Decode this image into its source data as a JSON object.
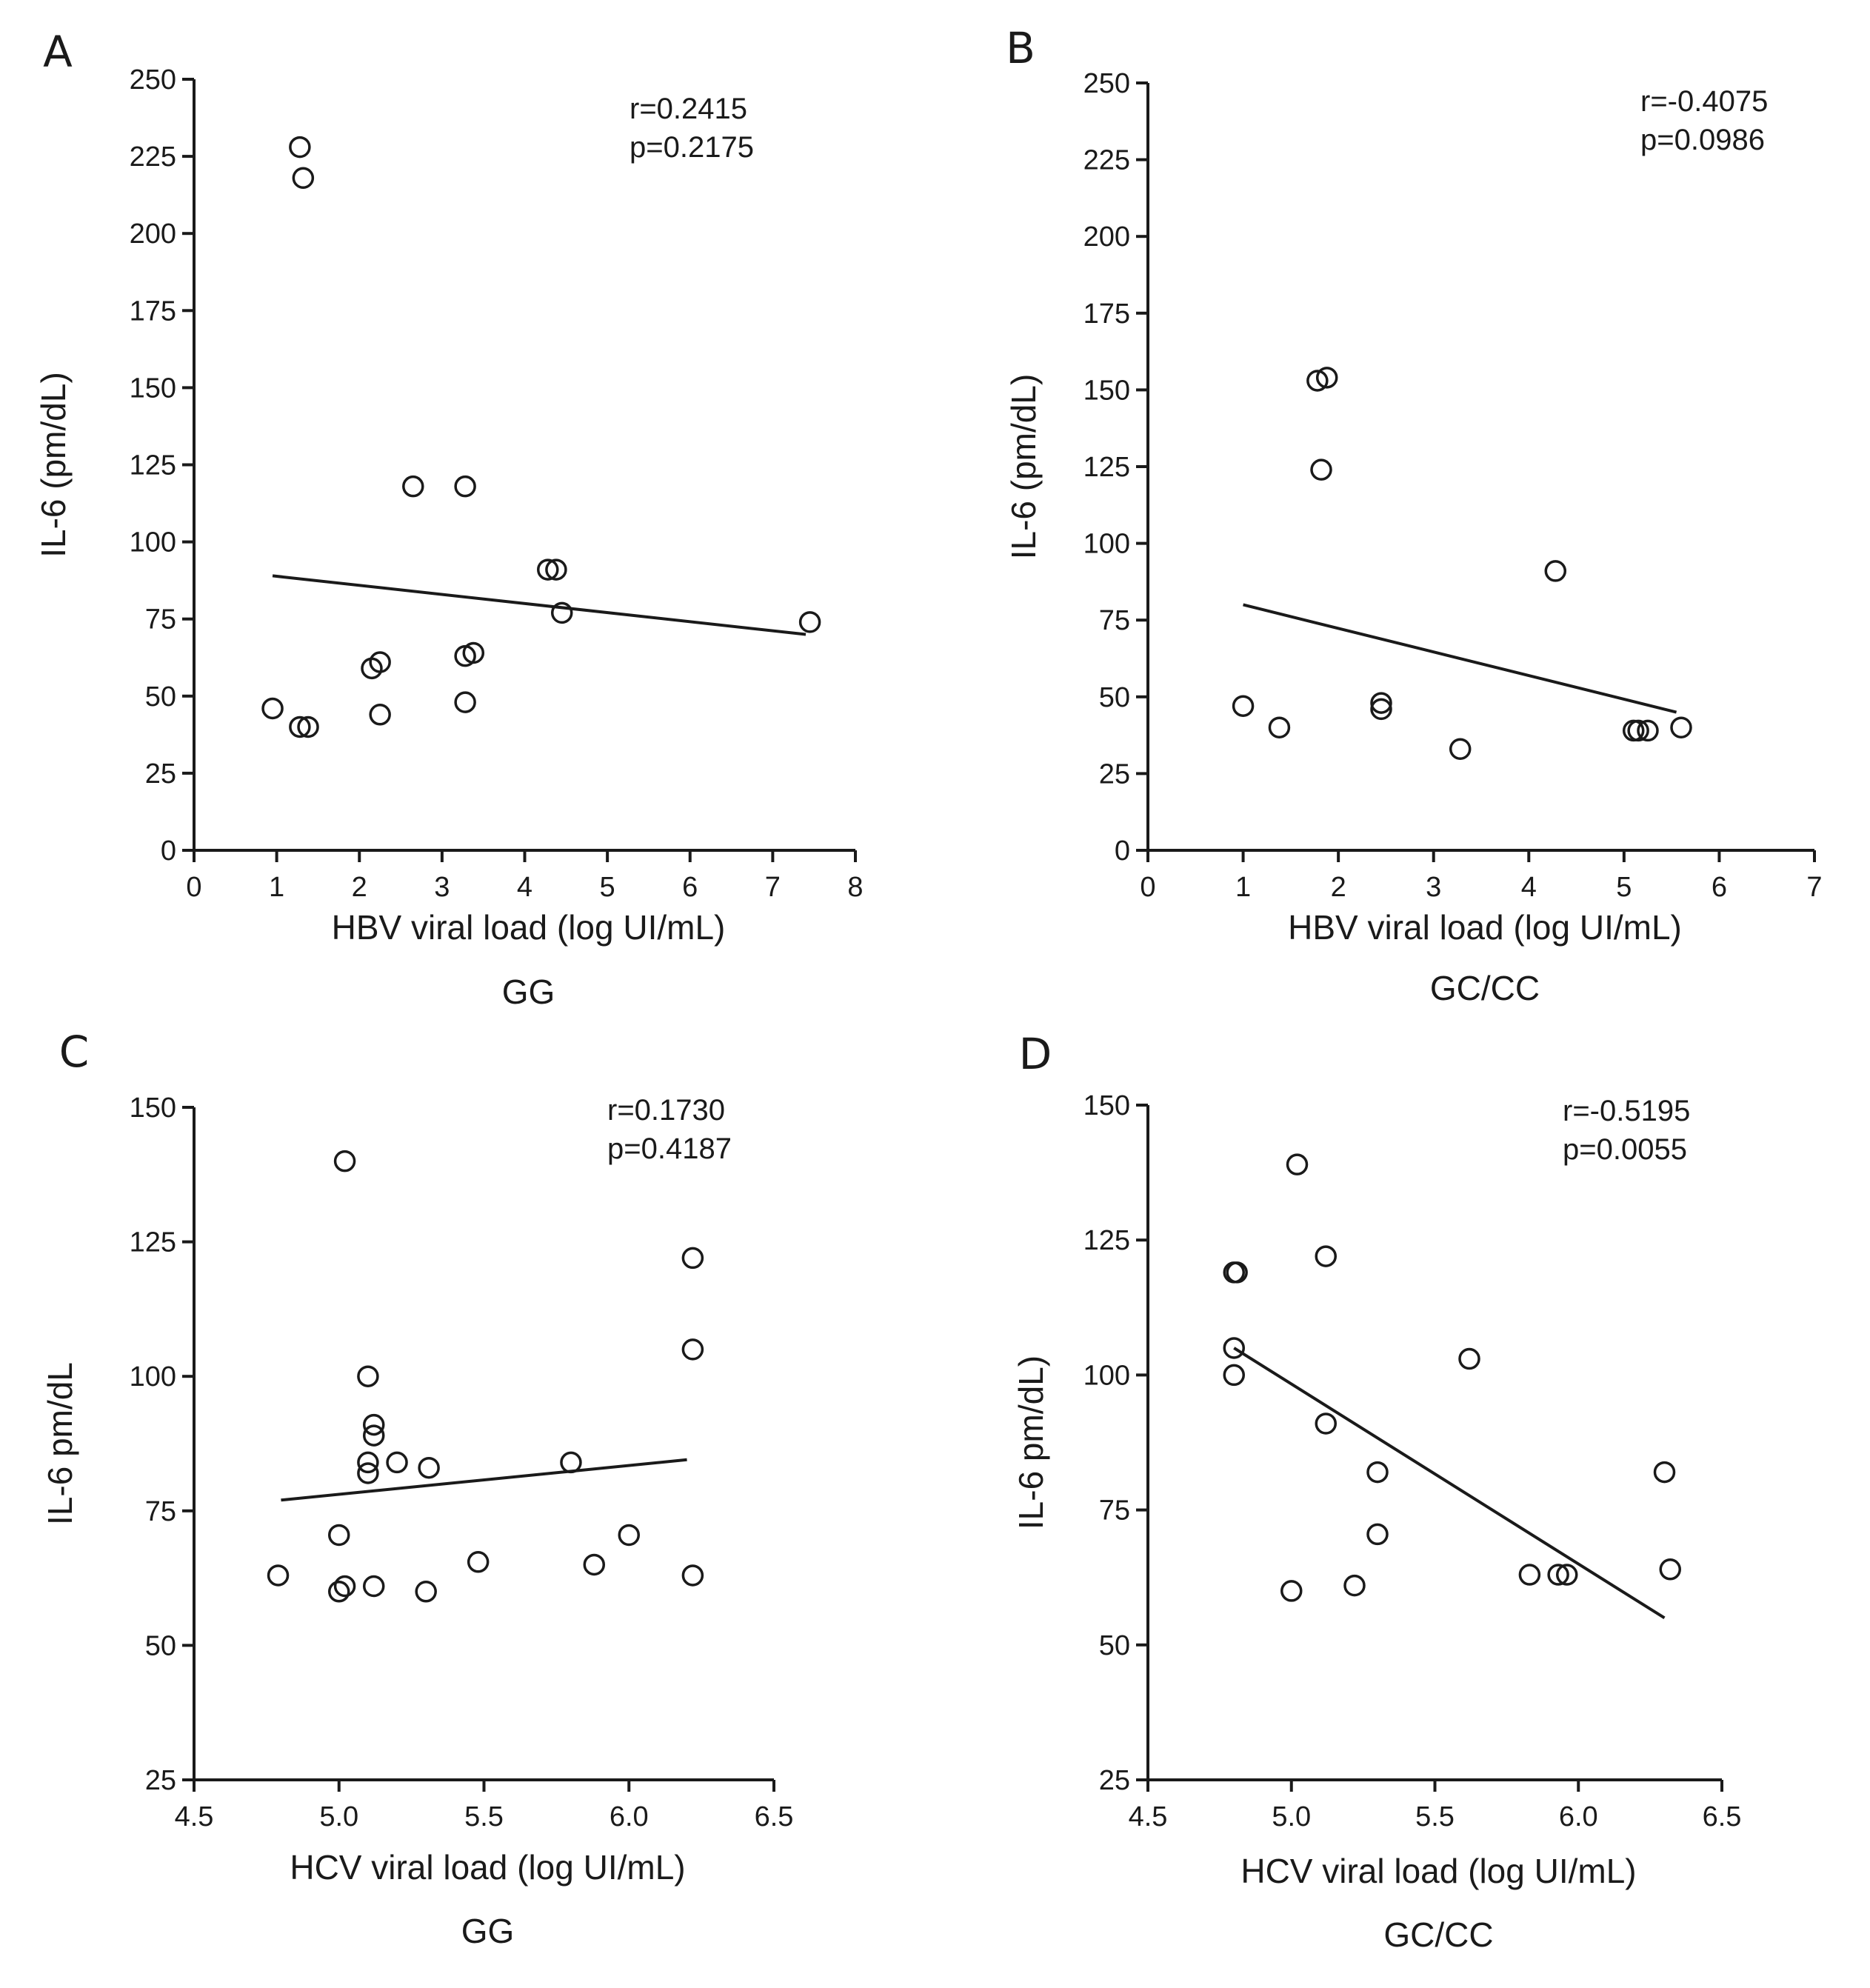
{
  "chart_data": [
    {
      "panel": "A",
      "type": "scatter",
      "title": "",
      "xlabel": "HBV viral load (log UI/mL)",
      "ylabel": "IL-6 (pm/dL)",
      "group": "GG",
      "xlim": [
        0,
        8
      ],
      "ylim": [
        0,
        250
      ],
      "xticks": [
        0,
        1,
        2,
        3,
        4,
        5,
        6,
        7,
        8
      ],
      "yticks": [
        0,
        25,
        50,
        75,
        100,
        125,
        150,
        175,
        200,
        225,
        250
      ],
      "xtick_labels": [
        "0",
        "1",
        "2",
        "3",
        "4",
        "5",
        "6",
        "7",
        "8"
      ],
      "ytick_labels": [
        "0",
        "25",
        "50",
        "75",
        "100",
        "125",
        "150",
        "175",
        "200",
        "225",
        "250"
      ],
      "stats": [
        "r=0.2415",
        "p=0.2175"
      ],
      "points": [
        {
          "x": 0.95,
          "y": 46
        },
        {
          "x": 1.28,
          "y": 40
        },
        {
          "x": 1.38,
          "y": 40
        },
        {
          "x": 1.28,
          "y": 228
        },
        {
          "x": 1.32,
          "y": 218
        },
        {
          "x": 2.15,
          "y": 59
        },
        {
          "x": 2.25,
          "y": 61
        },
        {
          "x": 2.25,
          "y": 44
        },
        {
          "x": 2.65,
          "y": 118
        },
        {
          "x": 3.28,
          "y": 118
        },
        {
          "x": 3.28,
          "y": 63
        },
        {
          "x": 3.38,
          "y": 64
        },
        {
          "x": 3.28,
          "y": 48
        },
        {
          "x": 4.28,
          "y": 91
        },
        {
          "x": 4.38,
          "y": 91
        },
        {
          "x": 4.45,
          "y": 77
        },
        {
          "x": 7.45,
          "y": 74
        }
      ],
      "fit_line": {
        "x": [
          0.95,
          7.4
        ],
        "y": [
          89,
          70
        ]
      }
    },
    {
      "panel": "B",
      "type": "scatter",
      "title": "",
      "xlabel": "HBV viral load (log UI/mL)",
      "ylabel": "IL-6 (pm/dL)",
      "group": "GC/CC",
      "xlim": [
        0,
        7
      ],
      "ylim": [
        0,
        250
      ],
      "xticks": [
        0,
        1,
        2,
        3,
        4,
        5,
        6,
        7
      ],
      "yticks": [
        0,
        25,
        50,
        75,
        100,
        125,
        150,
        175,
        200,
        225,
        250
      ],
      "xtick_labels": [
        "0",
        "1",
        "2",
        "3",
        "4",
        "5",
        "6",
        "7"
      ],
      "ytick_labels": [
        "0",
        "25",
        "50",
        "75",
        "100",
        "125",
        "150",
        "175",
        "200",
        "225",
        "250"
      ],
      "stats": [
        "r=-0.4075",
        "p=0.0986"
      ],
      "points": [
        {
          "x": 1.0,
          "y": 47
        },
        {
          "x": 1.38,
          "y": 40
        },
        {
          "x": 1.78,
          "y": 153
        },
        {
          "x": 1.88,
          "y": 154
        },
        {
          "x": 1.82,
          "y": 124
        },
        {
          "x": 2.45,
          "y": 48
        },
        {
          "x": 2.45,
          "y": 46
        },
        {
          "x": 3.28,
          "y": 33
        },
        {
          "x": 4.28,
          "y": 91
        },
        {
          "x": 5.1,
          "y": 39
        },
        {
          "x": 5.15,
          "y": 39
        },
        {
          "x": 5.25,
          "y": 39
        },
        {
          "x": 5.6,
          "y": 40
        }
      ],
      "fit_line": {
        "x": [
          1.0,
          5.55
        ],
        "y": [
          80,
          45
        ]
      }
    },
    {
      "panel": "C",
      "type": "scatter",
      "title": "",
      "xlabel": "HCV viral load (log UI/mL)",
      "ylabel": "IL-6 pm/dL",
      "group": "GG",
      "xlim": [
        4.5,
        6.5
      ],
      "ylim": [
        25,
        150
      ],
      "xticks": [
        4.5,
        5.0,
        5.5,
        6.0,
        6.5
      ],
      "yticks": [
        25,
        50,
        75,
        100,
        125,
        150
      ],
      "xtick_labels": [
        "4.5",
        "5.0",
        "5.5",
        "6.0",
        "6.5"
      ],
      "ytick_labels": [
        "25",
        "50",
        "75",
        "100",
        "125",
        "150"
      ],
      "stats": [
        "r=0.1730",
        "p=0.4187"
      ],
      "points": [
        {
          "x": 4.79,
          "y": 63
        },
        {
          "x": 5.0,
          "y": 60
        },
        {
          "x": 5.02,
          "y": 61
        },
        {
          "x": 5.0,
          "y": 70.5
        },
        {
          "x": 5.02,
          "y": 140
        },
        {
          "x": 5.1,
          "y": 100
        },
        {
          "x": 5.1,
          "y": 84
        },
        {
          "x": 5.1,
          "y": 82
        },
        {
          "x": 5.12,
          "y": 91
        },
        {
          "x": 5.12,
          "y": 89
        },
        {
          "x": 5.12,
          "y": 61
        },
        {
          "x": 5.2,
          "y": 84
        },
        {
          "x": 5.31,
          "y": 83
        },
        {
          "x": 5.3,
          "y": 60
        },
        {
          "x": 5.48,
          "y": 65.5
        },
        {
          "x": 5.8,
          "y": 84
        },
        {
          "x": 5.88,
          "y": 65
        },
        {
          "x": 6.0,
          "y": 70.5
        },
        {
          "x": 6.22,
          "y": 122
        },
        {
          "x": 6.22,
          "y": 105
        },
        {
          "x": 6.22,
          "y": 63
        }
      ],
      "fit_line": {
        "x": [
          4.8,
          6.2
        ],
        "y": [
          77,
          84.5
        ]
      }
    },
    {
      "panel": "D",
      "type": "scatter",
      "title": "",
      "xlabel": "HCV viral load (log UI/mL)",
      "ylabel": "IL-6 pm/dL)",
      "group": "GC/CC",
      "xlim": [
        4.5,
        6.5
      ],
      "ylim": [
        25,
        150
      ],
      "xticks": [
        4.5,
        5.0,
        5.5,
        6.0,
        6.5
      ],
      "yticks": [
        25,
        50,
        75,
        100,
        125,
        150
      ],
      "xtick_labels": [
        "4.5",
        "5.0",
        "5.5",
        "6.0",
        "6.5"
      ],
      "ytick_labels": [
        "25",
        "50",
        "75",
        "100",
        "125",
        "150"
      ],
      "stats": [
        "r=-0.5195",
        "p=0.0055"
      ],
      "points": [
        {
          "x": 4.8,
          "y": 119
        },
        {
          "x": 4.81,
          "y": 119
        },
        {
          "x": 4.8,
          "y": 105
        },
        {
          "x": 4.8,
          "y": 100
        },
        {
          "x": 5.0,
          "y": 60
        },
        {
          "x": 5.02,
          "y": 139
        },
        {
          "x": 5.12,
          "y": 122
        },
        {
          "x": 5.12,
          "y": 91
        },
        {
          "x": 5.22,
          "y": 61
        },
        {
          "x": 5.3,
          "y": 82
        },
        {
          "x": 5.3,
          "y": 70.5
        },
        {
          "x": 5.62,
          "y": 103
        },
        {
          "x": 5.83,
          "y": 63
        },
        {
          "x": 5.93,
          "y": 63
        },
        {
          "x": 5.96,
          "y": 63
        },
        {
          "x": 6.3,
          "y": 82
        },
        {
          "x": 6.32,
          "y": 64
        }
      ],
      "fit_line": {
        "x": [
          4.8,
          6.3
        ],
        "y": [
          105,
          55
        ]
      }
    }
  ]
}
